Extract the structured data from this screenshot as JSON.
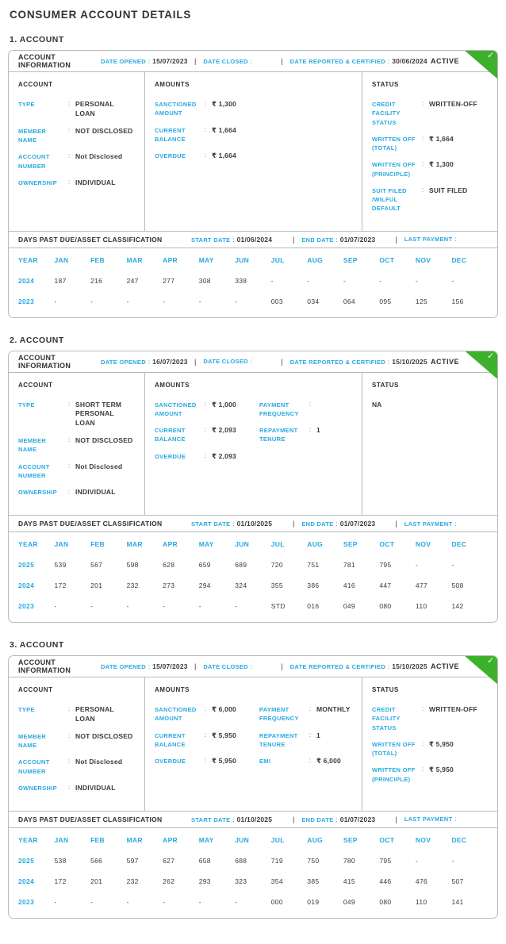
{
  "header": {
    "title": "CONSUMER ACCOUNT DETAILS"
  },
  "icons": {
    "check": "✓"
  },
  "colors": {
    "accent": "#29a9e1",
    "dark": "#3b3b3d",
    "green": "#3eb12c",
    "border": "#b7babc"
  },
  "months": [
    "YEAR",
    "JAN",
    "FEB",
    "MAR",
    "APR",
    "MAY",
    "JUN",
    "JUL",
    "AUG",
    "SEP",
    "OCT",
    "NOV",
    "DEC"
  ],
  "accounts": [
    {
      "section_label": "1. ACCOUNT",
      "info": {
        "title": "ACCOUNT INFORMATION",
        "date_opened_label": "DATE OPENED",
        "date_opened": "15/07/2023",
        "date_closed_label": "DATE CLOSED",
        "date_closed": "",
        "date_reported_label": "DATE REPORTED & CERTIFIED",
        "date_reported": "30/06/2024",
        "status": "ACTIVE"
      },
      "account": {
        "title": "ACCOUNT",
        "fields": [
          {
            "label": "TYPE",
            "value": "PERSONAL LOAN"
          },
          {
            "label": "MEMBER NAME",
            "value": "NOT DISCLOSED"
          },
          {
            "label": "ACCOUNT NUMBER",
            "value": "Not Disclosed"
          },
          {
            "label": "OWNERSHIP",
            "value": "INDIVIDUAL"
          }
        ]
      },
      "amounts": {
        "title": "AMOUNTS",
        "fields": [
          {
            "label": "SANCTIONED AMOUNT",
            "value": "₹ 1,300"
          },
          {
            "label": "CURRENT BALANCE",
            "value": "₹ 1,664"
          },
          {
            "label": "OVERDUE",
            "value": "₹ 1,664"
          }
        ]
      },
      "status": {
        "title": "STATUS",
        "na": "",
        "fields": [
          {
            "label": "CREDIT FACILITY STATUS",
            "value": "WRITTEN-OFF"
          },
          {
            "label": "WRITTEN OFF (TOTAL)",
            "value": "₹ 1,664"
          },
          {
            "label": "WRITTEN OFF (PRINCIPLE)",
            "value": "₹ 1,300"
          },
          {
            "label": "SUIT FILED /WILFUL DEFAULT",
            "value": "SUIT FILED"
          }
        ]
      },
      "dpd": {
        "title": "DAYS PAST DUE/ASSET CLASSIFICATION",
        "start_date_label": "START DATE",
        "start_date": "01/06/2024",
        "end_date_label": "END DATE",
        "end_date": "01/07/2023",
        "last_payment_label": "LAST PAYMENT",
        "last_payment": "",
        "rows": [
          {
            "year": "2024",
            "values": [
              "187",
              "216",
              "247",
              "277",
              "308",
              "338",
              "-",
              "-",
              "-",
              "-",
              "-",
              "-"
            ]
          },
          {
            "year": "2023",
            "values": [
              "-",
              "-",
              "-",
              "-",
              "-",
              "-",
              "003",
              "034",
              "064",
              "095",
              "125",
              "156"
            ]
          }
        ]
      }
    },
    {
      "section_label": "2. ACCOUNT",
      "info": {
        "title": "ACCOUNT INFORMATION",
        "date_opened_label": "DATE OPENED",
        "date_opened": "16/07/2023",
        "date_closed_label": "DATE CLOSED",
        "date_closed": "",
        "date_reported_label": "DATE REPORTED & CERTIFIED",
        "date_reported": "15/10/2025",
        "status": "ACTIVE"
      },
      "account": {
        "title": "ACCOUNT",
        "fields": [
          {
            "label": "TYPE",
            "value": "SHORT TERM PERSONAL LOAN"
          },
          {
            "label": "MEMBER NAME",
            "value": "NOT DISCLOSED"
          },
          {
            "label": "ACCOUNT NUMBER",
            "value": "Not Disclosed"
          },
          {
            "label": "OWNERSHIP",
            "value": "INDIVIDUAL"
          }
        ]
      },
      "amounts": {
        "title": "AMOUNTS",
        "fields": [
          {
            "label": "SANCTIONED AMOUNT",
            "value": "₹ 1,000"
          },
          {
            "label": "CURRENT BALANCE",
            "value": "₹ 2,093"
          },
          {
            "label": "OVERDUE",
            "value": "₹ 2,093"
          }
        ],
        "fields2": [
          {
            "label": "PAYMENT FREQUENCY",
            "value": ""
          },
          {
            "label": "REPAYMENT TENURE",
            "value": "1"
          }
        ]
      },
      "status": {
        "title": "STATUS",
        "na": "NA",
        "fields": []
      },
      "dpd": {
        "title": "DAYS PAST DUE/ASSET CLASSIFICATION",
        "start_date_label": "START DATE",
        "start_date": "01/10/2025",
        "end_date_label": "END DATE",
        "end_date": "01/07/2023",
        "last_payment_label": "LAST PAYMENT",
        "last_payment": "",
        "rows": [
          {
            "year": "2025",
            "values": [
              "539",
              "567",
              "598",
              "628",
              "659",
              "689",
              "720",
              "751",
              "781",
              "795",
              "-",
              "-"
            ]
          },
          {
            "year": "2024",
            "values": [
              "172",
              "201",
              "232",
              "273",
              "294",
              "324",
              "355",
              "386",
              "416",
              "447",
              "477",
              "508"
            ]
          },
          {
            "year": "2023",
            "values": [
              "-",
              "-",
              "-",
              "-",
              "-",
              "-",
              "STD",
              "016",
              "049",
              "080",
              "110",
              "142"
            ]
          }
        ]
      }
    },
    {
      "section_label": "3. ACCOUNT",
      "info": {
        "title": "ACCOUNT INFORMATION",
        "date_opened_label": "DATE OPENED",
        "date_opened": "15/07/2023",
        "date_closed_label": "DATE CLOSED",
        "date_closed": "",
        "date_reported_label": "DATE REPORTED & CERTIFIED",
        "date_reported": "15/10/2025",
        "status": "ACTIVE"
      },
      "account": {
        "title": "ACCOUNT",
        "fields": [
          {
            "label": "TYPE",
            "value": "PERSONAL LOAN"
          },
          {
            "label": "MEMBER NAME",
            "value": "NOT DISCLOSED"
          },
          {
            "label": "ACCOUNT NUMBER",
            "value": "Not Disclosed"
          },
          {
            "label": "OWNERSHIP",
            "value": "INDIVIDUAL"
          }
        ]
      },
      "amounts": {
        "title": "AMOUNTS",
        "fields": [
          {
            "label": "SANCTIONED AMOUNT",
            "value": "₹ 6,000"
          },
          {
            "label": "CURRENT BALANCE",
            "value": "₹ 5,950"
          },
          {
            "label": "OVERDUE",
            "value": "₹ 5,950"
          }
        ],
        "fields2": [
          {
            "label": "PAYMENT FREQUENCY",
            "value": "MONTHLY"
          },
          {
            "label": "REPAYMENT TENURE",
            "value": "1"
          },
          {
            "label": "EMI",
            "value": "₹ 6,000"
          }
        ]
      },
      "status": {
        "title": "STATUS",
        "na": "",
        "fields": [
          {
            "label": "CREDIT FACILITY STATUS",
            "value": "WRITTEN-OFF"
          },
          {
            "label": "WRITTEN OFF (TOTAL)",
            "value": "₹ 5,950"
          },
          {
            "label": "WRITTEN OFF (PRINCIPLE)",
            "value": "₹ 5,950"
          }
        ]
      },
      "dpd": {
        "title": "DAYS PAST DUE/ASSET CLASSIFICATION",
        "start_date_label": "START DATE",
        "start_date": "01/10/2025",
        "end_date_label": "END DATE",
        "end_date": "01/07/2023",
        "last_payment_label": "LAST PAYMENT",
        "last_payment": "",
        "rows": [
          {
            "year": "2025",
            "values": [
              "538",
              "566",
              "597",
              "627",
              "658",
              "688",
              "719",
              "750",
              "780",
              "795",
              "-",
              "-"
            ]
          },
          {
            "year": "2024",
            "values": [
              "172",
              "201",
              "232",
              "262",
              "293",
              "323",
              "354",
              "385",
              "415",
              "446",
              "476",
              "507"
            ]
          },
          {
            "year": "2023",
            "values": [
              "-",
              "-",
              "-",
              "-",
              "-",
              "-",
              "000",
              "019",
              "049",
              "080",
              "110",
              "141"
            ]
          }
        ]
      }
    }
  ]
}
